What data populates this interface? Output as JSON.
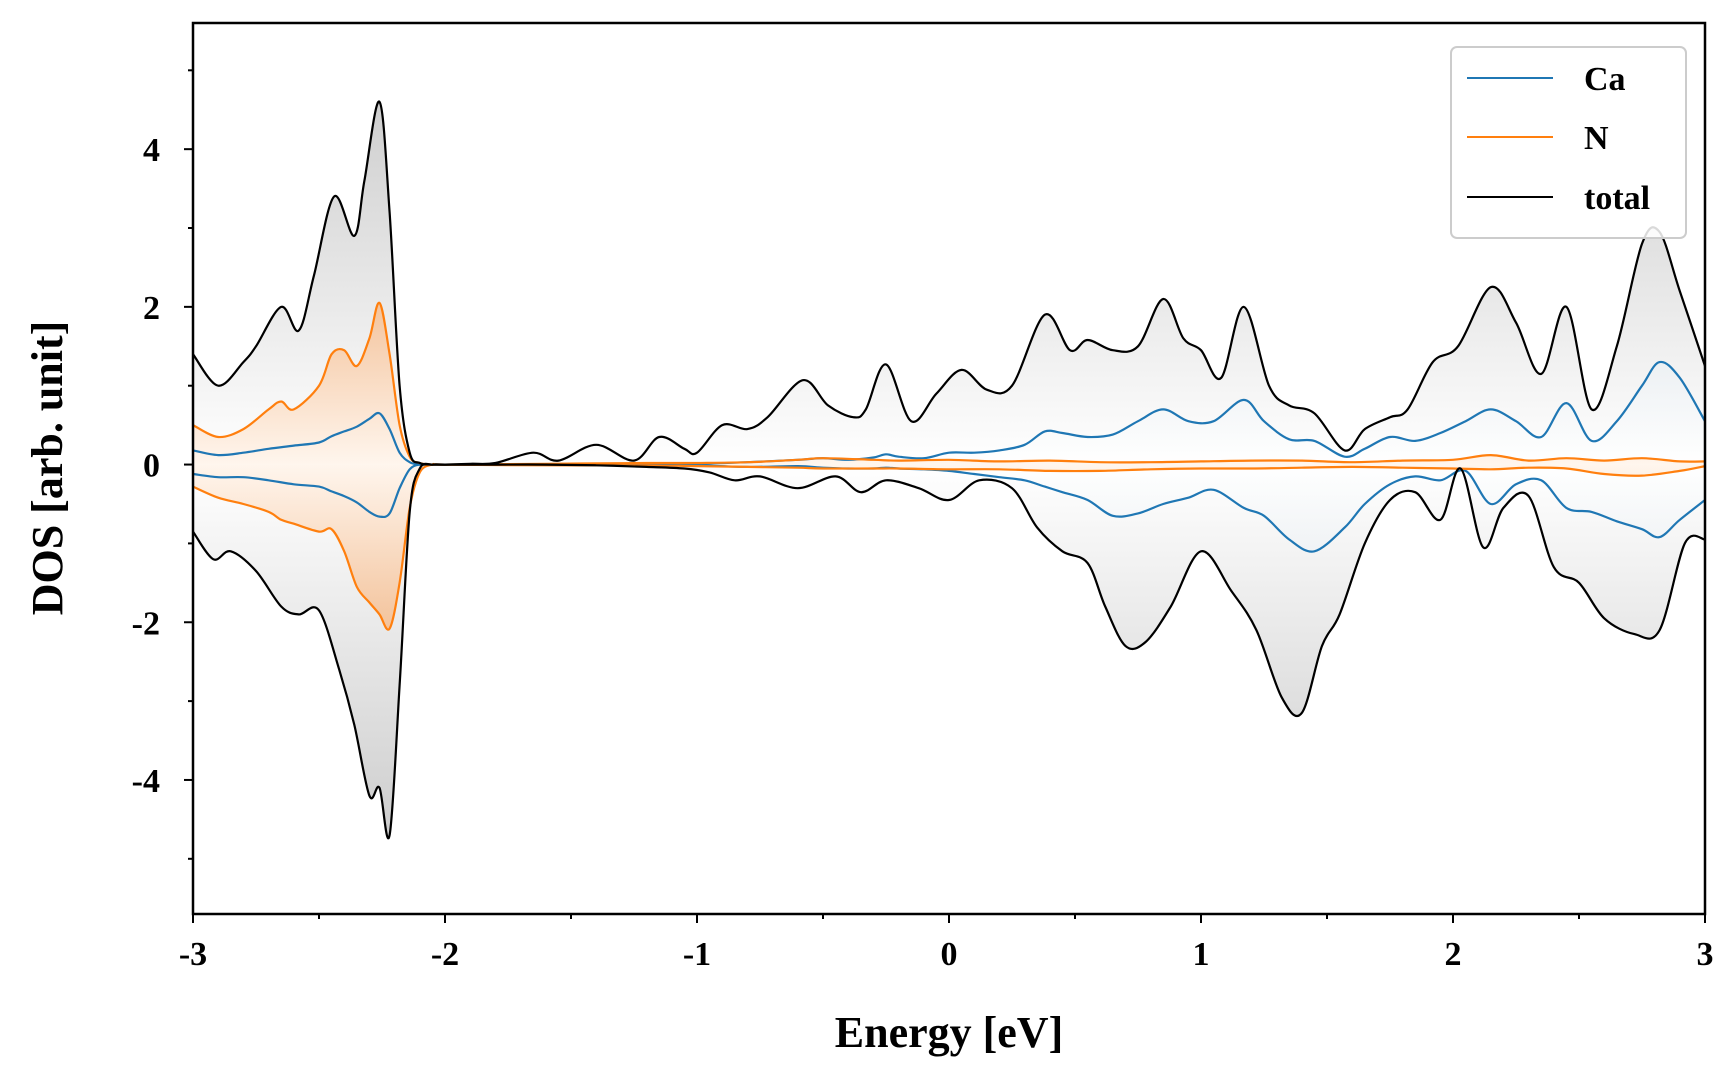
{
  "chart_data": {
    "type": "area",
    "title": "",
    "xlabel": "Energy [eV]",
    "ylabel": "DOS [arb. unit]",
    "xlim": [
      -3,
      3
    ],
    "ylim": [
      -5.7,
      5.6
    ],
    "x_ticks": [
      "-3",
      "-2",
      "-1",
      "0",
      "1",
      "2",
      "3"
    ],
    "y_ticks": [
      "-4",
      "-2",
      "0",
      "2",
      "4"
    ],
    "legend_position": "top-right",
    "grid": false,
    "colors": {
      "Ca": "#1f77b4",
      "N": "#ff7f0e",
      "total": "#000000",
      "fill_total": "#b0b0b0"
    },
    "series": [
      {
        "name": "Ca",
        "spin_up": {
          "x": [
            -3.0,
            -2.9,
            -2.8,
            -2.7,
            -2.6,
            -2.5,
            -2.45,
            -2.4,
            -2.35,
            -2.3,
            -2.26,
            -2.22,
            -2.18,
            -2.14,
            -2.1,
            -2.05,
            -2.0,
            -1.8,
            -1.6,
            -1.4,
            -1.2,
            -1.0,
            -0.8,
            -0.6,
            -0.5,
            -0.4,
            -0.3,
            -0.25,
            -0.2,
            -0.1,
            0.0,
            0.1,
            0.2,
            0.3,
            0.38,
            0.45,
            0.55,
            0.65,
            0.75,
            0.85,
            0.95,
            1.05,
            1.17,
            1.25,
            1.35,
            1.45,
            1.57,
            1.65,
            1.75,
            1.85,
            1.95,
            2.05,
            2.15,
            2.25,
            2.35,
            2.45,
            2.55,
            2.65,
            2.75,
            2.82,
            2.9,
            3.0
          ],
          "y": [
            0.18,
            0.12,
            0.15,
            0.2,
            0.24,
            0.28,
            0.36,
            0.42,
            0.48,
            0.58,
            0.65,
            0.45,
            0.15,
            0.03,
            0.0,
            0.0,
            0.0,
            0.0,
            0.0,
            0.0,
            0.01,
            0.01,
            0.03,
            0.06,
            0.08,
            0.06,
            0.09,
            0.13,
            0.1,
            0.08,
            0.15,
            0.15,
            0.18,
            0.25,
            0.42,
            0.4,
            0.35,
            0.38,
            0.55,
            0.7,
            0.55,
            0.55,
            0.82,
            0.55,
            0.32,
            0.3,
            0.1,
            0.2,
            0.35,
            0.3,
            0.4,
            0.55,
            0.7,
            0.55,
            0.35,
            0.78,
            0.3,
            0.55,
            1.0,
            1.3,
            1.1,
            0.55
          ]
        },
        "spin_down": {
          "x": [
            -3.0,
            -2.9,
            -2.8,
            -2.7,
            -2.6,
            -2.5,
            -2.45,
            -2.4,
            -2.35,
            -2.3,
            -2.26,
            -2.22,
            -2.18,
            -2.14,
            -2.1,
            -2.05,
            -2.0,
            -1.8,
            -1.6,
            -1.4,
            -1.2,
            -1.0,
            -0.8,
            -0.6,
            -0.5,
            -0.4,
            -0.3,
            -0.25,
            -0.2,
            -0.1,
            0.0,
            0.1,
            0.2,
            0.3,
            0.38,
            0.45,
            0.55,
            0.65,
            0.75,
            0.85,
            0.95,
            1.05,
            1.17,
            1.25,
            1.35,
            1.45,
            1.57,
            1.65,
            1.75,
            1.85,
            1.95,
            2.05,
            2.15,
            2.25,
            2.35,
            2.45,
            2.55,
            2.65,
            2.75,
            2.82,
            2.9,
            3.0
          ],
          "y": [
            -0.12,
            -0.16,
            -0.16,
            -0.2,
            -0.25,
            -0.28,
            -0.34,
            -0.4,
            -0.48,
            -0.6,
            -0.66,
            -0.62,
            -0.3,
            -0.06,
            0.0,
            0.0,
            0.0,
            0.0,
            0.0,
            0.0,
            -0.01,
            -0.01,
            -0.03,
            -0.02,
            -0.04,
            -0.05,
            -0.05,
            -0.04,
            -0.05,
            -0.06,
            -0.08,
            -0.12,
            -0.16,
            -0.2,
            -0.28,
            -0.35,
            -0.45,
            -0.65,
            -0.62,
            -0.5,
            -0.42,
            -0.32,
            -0.55,
            -0.65,
            -0.95,
            -1.1,
            -0.8,
            -0.5,
            -0.25,
            -0.15,
            -0.2,
            -0.08,
            -0.5,
            -0.25,
            -0.2,
            -0.55,
            -0.6,
            -0.72,
            -0.82,
            -0.92,
            -0.7,
            -0.45
          ]
        }
      },
      {
        "name": "N",
        "spin_up": {
          "x": [
            -3.0,
            -2.9,
            -2.8,
            -2.7,
            -2.65,
            -2.6,
            -2.5,
            -2.45,
            -2.4,
            -2.35,
            -2.3,
            -2.26,
            -2.22,
            -2.18,
            -2.14,
            -2.1,
            -2.05,
            -2.0,
            -1.6,
            -1.2,
            -1.0,
            -0.8,
            -0.6,
            -0.5,
            -0.3,
            -0.2,
            0.0,
            0.2,
            0.4,
            0.6,
            0.8,
            1.0,
            1.2,
            1.4,
            1.6,
            1.8,
            2.0,
            2.15,
            2.3,
            2.45,
            2.6,
            2.75,
            2.9,
            3.0
          ],
          "y": [
            0.5,
            0.35,
            0.45,
            0.7,
            0.8,
            0.7,
            1.0,
            1.4,
            1.45,
            1.25,
            1.6,
            2.05,
            1.4,
            0.5,
            0.1,
            0.02,
            0.0,
            0.0,
            0.01,
            0.02,
            0.02,
            0.03,
            0.06,
            0.08,
            0.06,
            0.05,
            0.06,
            0.04,
            0.05,
            0.03,
            0.03,
            0.04,
            0.05,
            0.05,
            0.03,
            0.05,
            0.06,
            0.12,
            0.05,
            0.08,
            0.05,
            0.08,
            0.04,
            0.04
          ]
        },
        "spin_down": {
          "x": [
            -3.0,
            -2.9,
            -2.8,
            -2.7,
            -2.65,
            -2.6,
            -2.5,
            -2.45,
            -2.4,
            -2.35,
            -2.3,
            -2.26,
            -2.22,
            -2.18,
            -2.14,
            -2.1,
            -2.05,
            -2.0,
            -1.6,
            -1.2,
            -1.0,
            -0.8,
            -0.6,
            -0.5,
            -0.3,
            -0.2,
            0.0,
            0.2,
            0.4,
            0.6,
            0.8,
            1.0,
            1.2,
            1.4,
            1.6,
            1.8,
            2.0,
            2.15,
            2.3,
            2.45,
            2.6,
            2.75,
            2.9,
            3.0
          ],
          "y": [
            -0.28,
            -0.42,
            -0.5,
            -0.6,
            -0.7,
            -0.75,
            -0.85,
            -0.82,
            -1.1,
            -1.55,
            -1.75,
            -1.9,
            -2.08,
            -1.5,
            -0.55,
            -0.1,
            0.0,
            0.0,
            -0.01,
            -0.01,
            -0.02,
            -0.03,
            -0.04,
            -0.05,
            -0.05,
            -0.05,
            -0.06,
            -0.06,
            -0.08,
            -0.08,
            -0.06,
            -0.05,
            -0.05,
            -0.04,
            -0.03,
            -0.04,
            -0.05,
            -0.06,
            -0.04,
            -0.05,
            -0.12,
            -0.14,
            -0.08,
            -0.02
          ]
        }
      },
      {
        "name": "total",
        "spin_up": {
          "x": [
            -3.0,
            -2.9,
            -2.8,
            -2.75,
            -2.65,
            -2.58,
            -2.52,
            -2.44,
            -2.36,
            -2.32,
            -2.26,
            -2.22,
            -2.18,
            -2.14,
            -2.1,
            -2.05,
            -2.0,
            -1.9,
            -1.8,
            -1.65,
            -1.55,
            -1.4,
            -1.25,
            -1.15,
            -1.05,
            -1.0,
            -0.9,
            -0.8,
            -0.72,
            -0.58,
            -0.48,
            -0.38,
            -0.33,
            -0.25,
            -0.15,
            -0.05,
            0.05,
            0.15,
            0.25,
            0.38,
            0.48,
            0.55,
            0.65,
            0.75,
            0.85,
            0.93,
            1.0,
            1.08,
            1.17,
            1.27,
            1.35,
            1.45,
            1.57,
            1.65,
            1.75,
            1.82,
            1.92,
            2.02,
            2.15,
            2.25,
            2.35,
            2.45,
            2.55,
            2.65,
            2.75,
            2.82,
            2.9,
            3.0
          ],
          "y": [
            1.4,
            1.0,
            1.3,
            1.5,
            2.0,
            1.7,
            2.4,
            3.4,
            2.9,
            3.6,
            4.6,
            3.2,
            1.0,
            0.15,
            0.02,
            0.0,
            0.0,
            0.01,
            0.02,
            0.15,
            0.05,
            0.25,
            0.05,
            0.35,
            0.2,
            0.15,
            0.5,
            0.45,
            0.6,
            1.07,
            0.75,
            0.6,
            0.7,
            1.27,
            0.55,
            0.9,
            1.2,
            0.95,
            1.0,
            1.9,
            1.45,
            1.58,
            1.45,
            1.5,
            2.1,
            1.6,
            1.45,
            1.1,
            2.0,
            1.0,
            0.75,
            0.65,
            0.18,
            0.45,
            0.6,
            0.7,
            1.3,
            1.5,
            2.25,
            1.8,
            1.15,
            2.0,
            0.7,
            1.5,
            2.8,
            2.95,
            2.2,
            1.25
          ]
        },
        "spin_down": {
          "x": [
            -3.0,
            -2.92,
            -2.85,
            -2.75,
            -2.65,
            -2.58,
            -2.5,
            -2.42,
            -2.36,
            -2.3,
            -2.26,
            -2.22,
            -2.18,
            -2.14,
            -2.1,
            -2.05,
            -2.0,
            -1.8,
            -1.6,
            -1.4,
            -1.2,
            -1.05,
            -0.95,
            -0.85,
            -0.75,
            -0.6,
            -0.45,
            -0.35,
            -0.25,
            -0.12,
            0.0,
            0.12,
            0.25,
            0.35,
            0.45,
            0.55,
            0.62,
            0.7,
            0.78,
            0.88,
            1.0,
            1.12,
            1.22,
            1.32,
            1.4,
            1.48,
            1.55,
            1.65,
            1.75,
            1.85,
            1.95,
            2.03,
            2.12,
            2.2,
            2.3,
            2.4,
            2.5,
            2.6,
            2.72,
            2.82,
            2.92,
            3.0
          ],
          "y": [
            -0.85,
            -1.2,
            -1.1,
            -1.35,
            -1.8,
            -1.9,
            -1.85,
            -2.6,
            -3.3,
            -4.2,
            -4.1,
            -4.7,
            -2.8,
            -0.6,
            -0.05,
            0.0,
            0.0,
            0.0,
            0.0,
            -0.01,
            -0.03,
            -0.05,
            -0.1,
            -0.2,
            -0.15,
            -0.3,
            -0.15,
            -0.35,
            -0.2,
            -0.3,
            -0.45,
            -0.2,
            -0.3,
            -0.8,
            -1.1,
            -1.25,
            -1.8,
            -2.3,
            -2.25,
            -1.8,
            -1.1,
            -1.6,
            -2.1,
            -2.95,
            -3.15,
            -2.3,
            -1.9,
            -1.0,
            -0.45,
            -0.35,
            -0.7,
            -0.05,
            -1.05,
            -0.55,
            -0.4,
            -1.3,
            -1.5,
            -1.95,
            -2.15,
            -2.1,
            -1.0,
            -0.95
          ]
        }
      }
    ]
  }
}
